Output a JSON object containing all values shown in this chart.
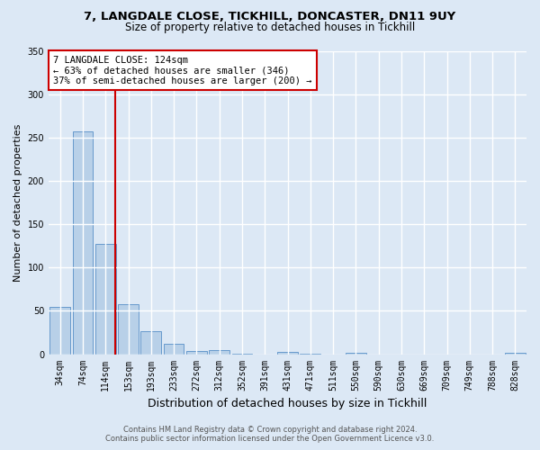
{
  "title1": "7, LANGDALE CLOSE, TICKHILL, DONCASTER, DN11 9UY",
  "title2": "Size of property relative to detached houses in Tickhill",
  "xlabel": "Distribution of detached houses by size in Tickhill",
  "ylabel": "Number of detached properties",
  "bar_labels": [
    "34sqm",
    "74sqm",
    "114sqm",
    "153sqm",
    "193sqm",
    "233sqm",
    "272sqm",
    "312sqm",
    "352sqm",
    "391sqm",
    "431sqm",
    "471sqm",
    "511sqm",
    "550sqm",
    "590sqm",
    "630sqm",
    "669sqm",
    "709sqm",
    "749sqm",
    "788sqm",
    "828sqm"
  ],
  "bar_values": [
    55,
    257,
    127,
    58,
    27,
    12,
    4,
    5,
    1,
    0,
    3,
    1,
    0,
    2,
    0,
    0,
    0,
    0,
    0,
    0,
    2
  ],
  "bar_color": "#b8d0e8",
  "bar_edge_color": "#6699cc",
  "vline_pos": 2.425,
  "vline_color": "#cc0000",
  "ylim": [
    0,
    350
  ],
  "yticks": [
    0,
    50,
    100,
    150,
    200,
    250,
    300,
    350
  ],
  "annotation_title": "7 LANGDALE CLOSE: 124sqm",
  "annotation_line1": "← 63% of detached houses are smaller (346)",
  "annotation_line2": "37% of semi-detached houses are larger (200) →",
  "annotation_box_color": "#ffffff",
  "annotation_box_edge": "#cc0000",
  "footer1": "Contains HM Land Registry data © Crown copyright and database right 2024.",
  "footer2": "Contains public sector information licensed under the Open Government Licence v3.0.",
  "bg_color": "#dce8f5",
  "plot_bg_color": "#dce8f5",
  "grid_color": "#ffffff",
  "title_fontsize": 9.5,
  "subtitle_fontsize": 8.5,
  "tick_fontsize": 7,
  "ylabel_fontsize": 8,
  "xlabel_fontsize": 9,
  "annotation_fontsize": 7.5,
  "footer_fontsize": 6
}
